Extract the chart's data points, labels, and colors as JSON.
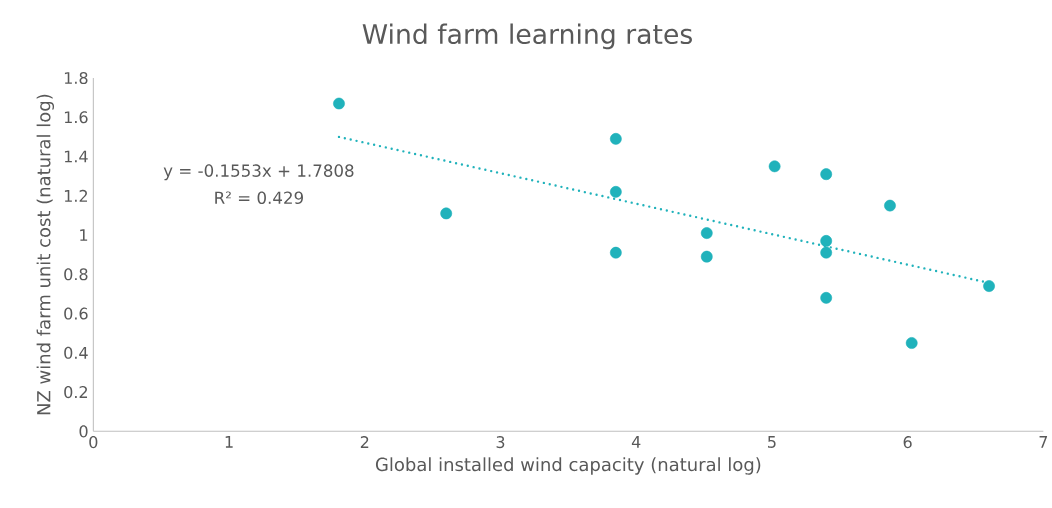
{
  "chart_data": {
    "type": "scatter",
    "title": "Wind farm learning rates",
    "xlabel": "Global installed wind capacity (natural log)",
    "ylabel": "NZ wind farm unit cost (natural log)",
    "annotations": [
      "y = -0.1553x + 1.7808",
      "R² = 0.429"
    ],
    "xlim": [
      0,
      7
    ],
    "ylim": [
      0,
      1.8
    ],
    "xticks": [
      0,
      1,
      2,
      3,
      4,
      5,
      6,
      7
    ],
    "yticks": [
      0,
      0.2,
      0.4,
      0.6,
      0.8,
      1,
      1.2,
      1.4,
      1.6,
      1.8
    ],
    "grid": false,
    "marker": "circle",
    "series": [
      {
        "color": "#20b2bb",
        "x": [
          1.81,
          2.6,
          3.85,
          3.85,
          3.85,
          4.52,
          4.52,
          5.02,
          5.4,
          5.4,
          5.4,
          5.4,
          5.87,
          6.03,
          6.6
        ],
        "values": [
          1.67,
          1.11,
          1.49,
          1.22,
          0.91,
          1.01,
          0.89,
          1.35,
          1.31,
          0.97,
          0.91,
          0.68,
          1.15,
          0.45,
          0.74
        ]
      },
      {
        "type": "line",
        "color": "#20b2bb",
        "line_style": "dotted",
        "marker": "none",
        "x": [
          1.81,
          6.6
        ],
        "values": [
          1.5,
          0.756
        ]
      }
    ]
  }
}
